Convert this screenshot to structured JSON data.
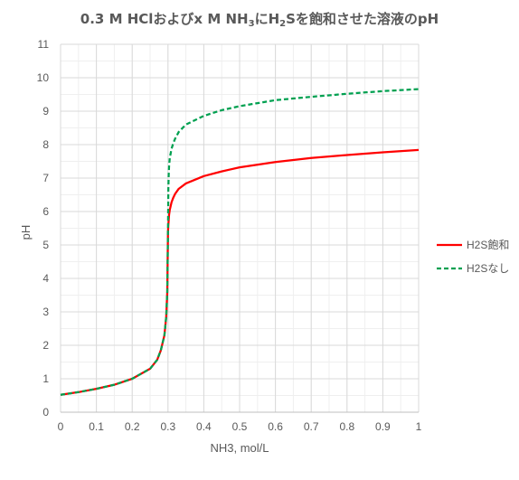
{
  "chart_data": {
    "type": "line",
    "title": {
      "parts": [
        {
          "text": "0.3 M HClおよびx M NH",
          "sub": false
        },
        {
          "text": "3",
          "sub": true
        },
        {
          "text": "にH",
          "sub": false
        },
        {
          "text": "2",
          "sub": true
        },
        {
          "text": "Sを飽和させた溶液のpH",
          "sub": false
        }
      ]
    },
    "xlabel": "NH3, mol/L",
    "ylabel": "pH",
    "xlim": [
      0,
      1
    ],
    "ylim": [
      0,
      11
    ],
    "xticks": [
      0,
      0.1,
      0.2,
      0.3,
      0.4,
      0.5,
      0.6,
      0.7,
      0.8,
      0.9,
      1
    ],
    "yticks": [
      0,
      1,
      2,
      3,
      4,
      5,
      6,
      7,
      8,
      9,
      10,
      11
    ],
    "grid": true,
    "legend_position": "right",
    "series": [
      {
        "name": "H2S飽和",
        "color": "#ff0000",
        "style": "solid",
        "x": [
          0,
          0.05,
          0.1,
          0.15,
          0.2,
          0.25,
          0.27,
          0.28,
          0.29,
          0.295,
          0.298,
          0.3,
          0.301,
          0.303,
          0.305,
          0.31,
          0.315,
          0.32,
          0.33,
          0.35,
          0.4,
          0.45,
          0.5,
          0.6,
          0.7,
          0.8,
          0.9,
          1.0
        ],
        "y": [
          0.52,
          0.6,
          0.7,
          0.82,
          1.0,
          1.3,
          1.57,
          1.85,
          2.3,
          2.85,
          3.6,
          5.4,
          5.6,
          5.9,
          6.05,
          6.28,
          6.42,
          6.53,
          6.68,
          6.84,
          7.06,
          7.2,
          7.32,
          7.48,
          7.6,
          7.69,
          7.77,
          7.84
        ]
      },
      {
        "name": "H2Sなし",
        "color": "#00a050",
        "style": "dashed",
        "x": [
          0,
          0.05,
          0.1,
          0.15,
          0.2,
          0.25,
          0.27,
          0.28,
          0.29,
          0.295,
          0.298,
          0.3,
          0.301,
          0.302,
          0.303,
          0.305,
          0.31,
          0.315,
          0.32,
          0.33,
          0.35,
          0.4,
          0.45,
          0.5,
          0.6,
          0.7,
          0.8,
          0.9,
          1.0
        ],
        "y": [
          0.52,
          0.6,
          0.7,
          0.82,
          1.0,
          1.3,
          1.57,
          1.85,
          2.3,
          2.85,
          3.6,
          5.4,
          6.7,
          7.1,
          7.35,
          7.6,
          7.88,
          8.05,
          8.18,
          8.38,
          8.6,
          8.86,
          9.03,
          9.15,
          9.33,
          9.43,
          9.52,
          9.6,
          9.66
        ]
      }
    ]
  }
}
